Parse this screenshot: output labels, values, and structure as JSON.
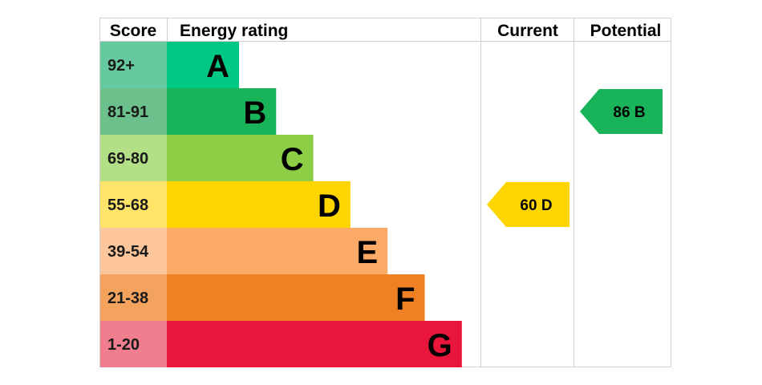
{
  "chart_data": {
    "type": "bar",
    "headers": {
      "score": "Score",
      "energy_rating": "Energy rating",
      "current": "Current",
      "potential": "Potential"
    },
    "bands": [
      {
        "band": "A",
        "score": "92+",
        "color": "#00c781",
        "score_bg": "#66c9a0"
      },
      {
        "band": "B",
        "score": "81-91",
        "color": "#19b459",
        "score_bg": "#6cc08c"
      },
      {
        "band": "C",
        "score": "69-80",
        "color": "#8dce46",
        "score_bg": "#b3df86"
      },
      {
        "band": "D",
        "score": "55-68",
        "color": "#ffd500",
        "score_bg": "#ffe46a"
      },
      {
        "band": "E",
        "score": "39-54",
        "color": "#fcaa65",
        "score_bg": "#fdc59a"
      },
      {
        "band": "F",
        "score": "21-38",
        "color": "#ef8023",
        "score_bg": "#f4a35f"
      },
      {
        "band": "G",
        "score": "1-20",
        "color": "#e9153b",
        "score_bg": "#f07e8e"
      }
    ],
    "current": {
      "value": 60,
      "band": "D",
      "label": "60  D",
      "color": "#ffd500"
    },
    "potential": {
      "value": 86,
      "band": "B",
      "label": "86  B",
      "color": "#19b459"
    }
  }
}
